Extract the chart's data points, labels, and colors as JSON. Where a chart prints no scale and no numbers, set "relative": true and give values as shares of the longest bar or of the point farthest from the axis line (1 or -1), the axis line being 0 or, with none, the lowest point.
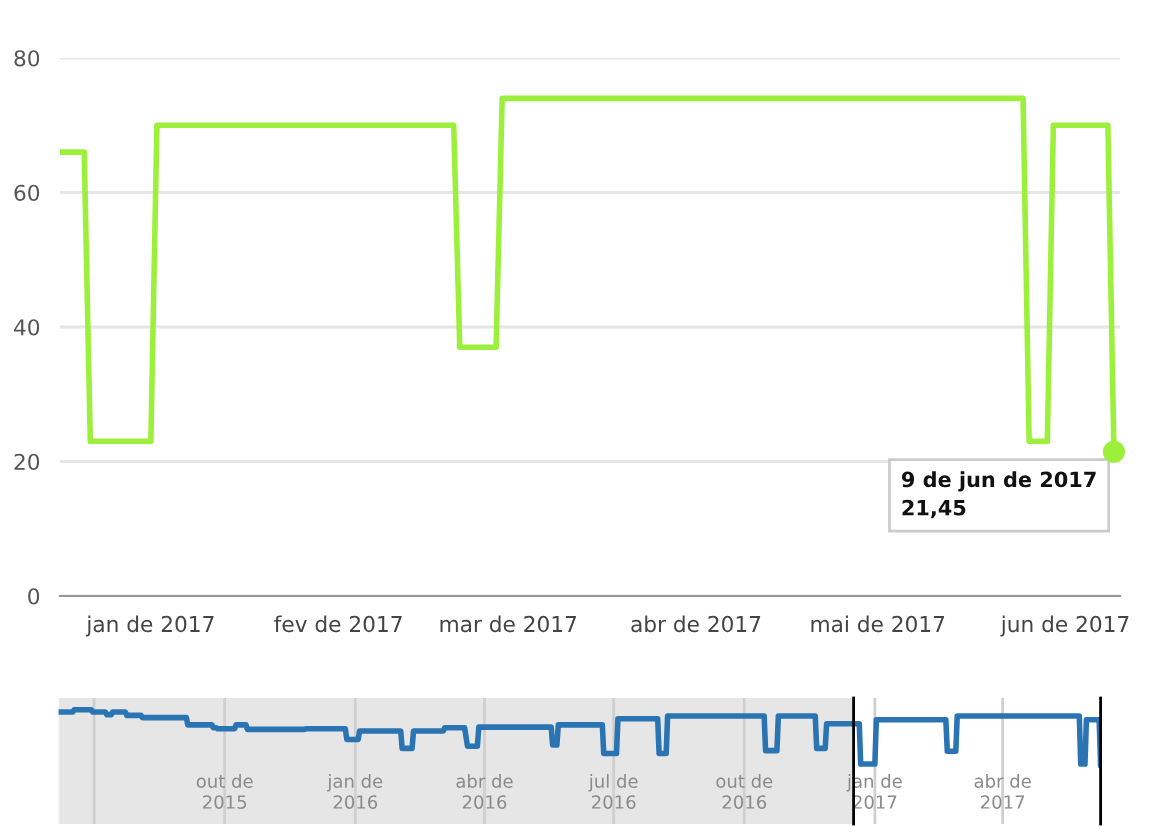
{
  "chart_data": [
    {
      "type": "line",
      "color": "#9cf03c",
      "line_style": "solid",
      "x": [
        "2016-12-17",
        "2016-12-21",
        "2016-12-22",
        "2017-01-01",
        "2017-01-02",
        "2017-02-20",
        "2017-02-21",
        "2017-02-27",
        "2017-02-28",
        "2017-05-25",
        "2017-05-26",
        "2017-05-29",
        "2017-05-30",
        "2017-06-08",
        "2017-06-09"
      ],
      "values": [
        66,
        66,
        23,
        23,
        70,
        70,
        37,
        37,
        74,
        74,
        23,
        23,
        70,
        70,
        21.45
      ],
      "xlim": [
        "2016-12-17",
        "2017-06-10"
      ],
      "xticks": [
        {
          "value": "2017-01-01",
          "label": "jan de 2017"
        },
        {
          "value": "2017-02-01",
          "label": "fev de 2017"
        },
        {
          "value": "2017-03-01",
          "label": "mar de 2017"
        },
        {
          "value": "2017-04-01",
          "label": "abr de 2017"
        },
        {
          "value": "2017-05-01",
          "label": "mai de 2017"
        },
        {
          "value": "2017-06-01",
          "label": "jun de 2017"
        }
      ],
      "ylim": [
        0,
        80
      ],
      "yticks": [
        0,
        20,
        40,
        60,
        80
      ],
      "grid": "y",
      "annotations": [
        {
          "text": "9 de jun de 2017\n21,45",
          "x": "2017-06-09",
          "y": 21.45
        }
      ]
    },
    {
      "type": "line",
      "relative": true,
      "color": "#2b74b4",
      "line_style": "solid",
      "x": [
        "2015-06-06",
        "2015-06-16",
        "2015-06-17",
        "2015-06-29",
        "2015-06-30",
        "2015-07-09",
        "2015-07-10",
        "2015-07-13",
        "2015-07-14",
        "2015-07-23",
        "2015-07-24",
        "2015-08-03",
        "2015-08-04",
        "2015-09-04",
        "2015-09-05",
        "2015-09-22",
        "2015-09-23",
        "2015-09-25",
        "2015-09-26",
        "2015-10-08",
        "2015-10-09",
        "2015-10-16",
        "2015-10-17",
        "2015-11-26",
        "2015-11-27",
        "2015-12-25",
        "2015-12-26",
        "2016-01-03",
        "2016-01-04",
        "2016-02-02",
        "2016-02-03",
        "2016-02-10",
        "2016-02-11",
        "2016-03-03",
        "2016-03-04",
        "2016-03-18",
        "2016-03-20",
        "2016-03-27",
        "2016-03-28",
        "2016-05-18",
        "2016-05-19",
        "2016-05-22",
        "2016-05-23",
        "2016-06-23",
        "2016-06-24",
        "2016-07-03",
        "2016-07-04",
        "2016-08-01",
        "2016-08-02",
        "2016-08-07",
        "2016-08-08",
        "2016-10-15",
        "2016-10-16",
        "2016-10-24",
        "2016-10-25",
        "2016-11-20",
        "2016-11-21",
        "2016-11-27",
        "2016-11-28",
        "2016-12-21",
        "2016-12-22",
        "2017-01-01",
        "2017-01-02",
        "2017-02-20",
        "2017-02-21",
        "2017-02-27",
        "2017-02-28",
        "2017-05-25",
        "2017-05-26",
        "2017-05-29",
        "2017-05-30",
        "2017-06-08",
        "2017-06-09"
      ],
      "values": [
        0.96,
        0.96,
        1,
        1,
        0.96,
        0.96,
        0.91,
        0.91,
        0.96,
        0.96,
        0.9,
        0.9,
        0.86,
        0.86,
        0.73,
        0.73,
        0.68,
        0.68,
        0.66,
        0.66,
        0.73,
        0.73,
        0.65,
        0.65,
        0.66,
        0.66,
        0.47,
        0.47,
        0.62,
        0.62,
        0.31,
        0.31,
        0.62,
        0.62,
        0.68,
        0.68,
        0.35,
        0.35,
        0.69,
        0.69,
        0.37,
        0.37,
        0.73,
        0.73,
        0.22,
        0.22,
        0.84,
        0.84,
        0.22,
        0.22,
        0.89,
        0.89,
        0.27,
        0.27,
        0.89,
        0.89,
        0.31,
        0.31,
        0.75,
        0.75,
        0.03,
        0.03,
        0.82,
        0.82,
        0.26,
        0.26,
        0.89,
        0.89,
        0.03,
        0.03,
        0.82,
        0.82,
        0
      ],
      "xlim": [
        "2015-06-06",
        "2017-06-09"
      ],
      "xticks": [
        {
          "value": "2015-07-01",
          "label": null
        },
        {
          "value": "2015-10-01",
          "label": "out de 2015"
        },
        {
          "value": "2016-01-01",
          "label": "jan de 2016"
        },
        {
          "value": "2016-04-01",
          "label": "abr de 2016"
        },
        {
          "value": "2016-07-01",
          "label": "jul de 2016"
        },
        {
          "value": "2016-10-01",
          "label": "out de 2016"
        },
        {
          "value": "2017-01-01",
          "label": "jan de 2017"
        },
        {
          "value": "2017-04-01",
          "label": "abr de 2017"
        }
      ],
      "grid": "x",
      "tick_labels": "x",
      "bands": [
        {
          "axis": "x",
          "from": "2015-06-06",
          "to": "2016-12-17",
          "color": "#e6e6e6"
        }
      ],
      "ref_lines": [
        {
          "axis": "x",
          "value": "2016-12-17",
          "color": "#000000"
        },
        {
          "axis": "x",
          "value": "2017-06-09",
          "color": "#000000"
        }
      ]
    }
  ]
}
